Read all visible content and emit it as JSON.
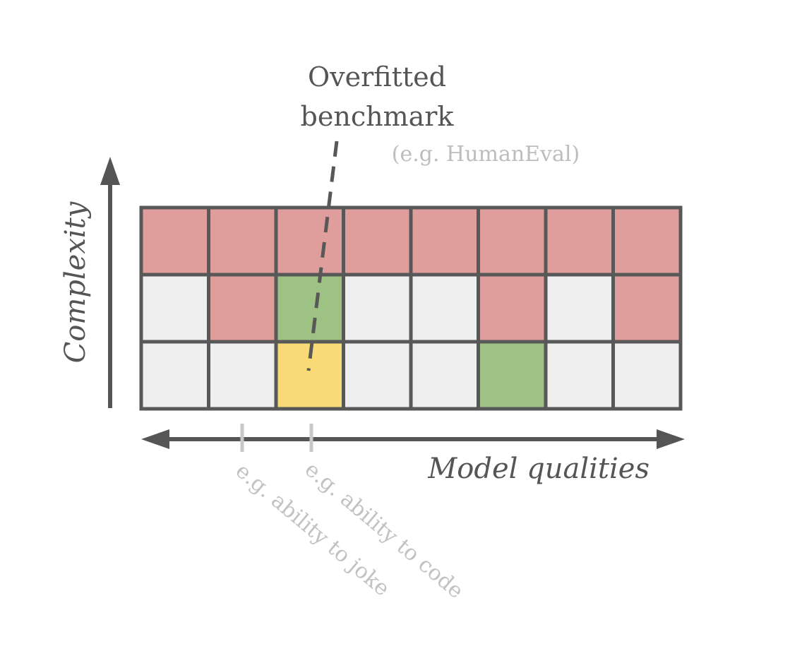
{
  "title": {
    "line1": "Overfitted",
    "line2": "benchmark",
    "note": "(e.g. HumanEval)"
  },
  "axes": {
    "y_label": "Complexity",
    "x_label": "Model qualities"
  },
  "examples": {
    "joke": "e.g. ability to joke",
    "code": "e.g. ability to code"
  },
  "colors": {
    "red": "#df9e9c",
    "gray": "#eeeeee",
    "green": "#9dc283",
    "yellow": "#f8da76",
    "grid_line": "#585858",
    "arrow": "#555555",
    "tick": "#c8c8c8",
    "dash": "#585858"
  },
  "grid": {
    "rows": [
      [
        "red",
        "red",
        "red",
        "red",
        "red",
        "red",
        "red",
        "red"
      ],
      [
        "gray",
        "red",
        "green",
        "gray",
        "gray",
        "red",
        "gray",
        "red"
      ],
      [
        "gray",
        "gray",
        "yellow",
        "gray",
        "gray",
        "green",
        "gray",
        "gray"
      ]
    ]
  }
}
